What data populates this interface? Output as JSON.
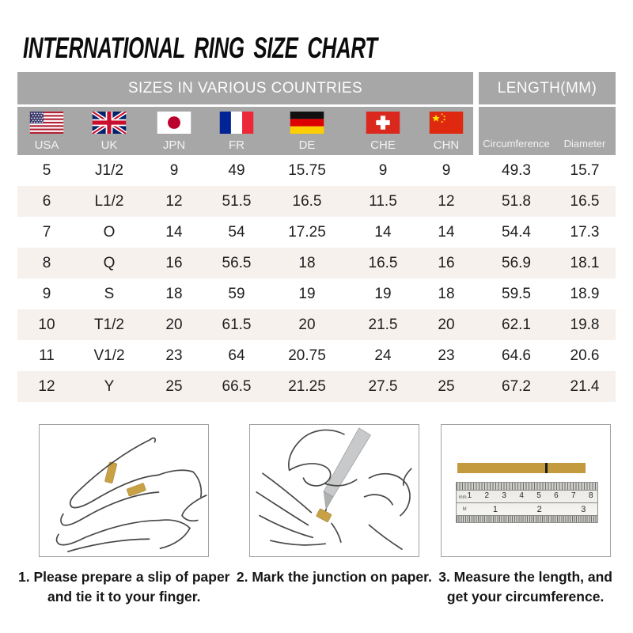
{
  "title": "INTERNATIONAL RING SIZE CHART",
  "table": {
    "section_headers": [
      "SIZES IN VARIOUS COUNTRIES",
      "LENGTH(MM)"
    ],
    "columns": [
      {
        "label": "USA",
        "flag": "usa-flag-icon"
      },
      {
        "label": "UK",
        "flag": "uk-flag-icon"
      },
      {
        "label": "JPN",
        "flag": "japan-flag-icon"
      },
      {
        "label": "FR",
        "flag": "france-flag-icon"
      },
      {
        "label": "DE",
        "flag": "germany-flag-icon"
      },
      {
        "label": "CHE",
        "flag": "switzerland-flag-icon"
      },
      {
        "label": "CHN",
        "flag": "china-flag-icon"
      }
    ],
    "length_columns": [
      "Circumference",
      "Diameter"
    ],
    "rows": [
      [
        "5",
        "J1/2",
        "9",
        "49",
        "15.75",
        "9",
        "9",
        "49.3",
        "15.7"
      ],
      [
        "6",
        "L1/2",
        "12",
        "51.5",
        "16.5",
        "11.5",
        "12",
        "51.8",
        "16.5"
      ],
      [
        "7",
        "O",
        "14",
        "54",
        "17.25",
        "14",
        "14",
        "54.4",
        "17.3"
      ],
      [
        "8",
        "Q",
        "16",
        "56.5",
        "18",
        "16.5",
        "16",
        "56.9",
        "18.1"
      ],
      [
        "9",
        "S",
        "18",
        "59",
        "19",
        "19",
        "18",
        "59.5",
        "18.9"
      ],
      [
        "10",
        "T1/2",
        "20",
        "61.5",
        "20",
        "21.5",
        "20",
        "62.1",
        "19.8"
      ],
      [
        "11",
        "V1/2",
        "23",
        "64",
        "20.75",
        "24",
        "23",
        "64.6",
        "20.6"
      ],
      [
        "12",
        "Y",
        "25",
        "66.5",
        "21.25",
        "27.5",
        "25",
        "67.2",
        "21.4"
      ]
    ]
  },
  "steps": [
    {
      "caption": [
        "1. Please prepare a slip of paper",
        "and tie it to your finger."
      ]
    },
    {
      "caption": [
        "2. Mark the junction on paper."
      ]
    },
    {
      "caption": [
        "3. Measure the length, and",
        "get your circumference."
      ]
    }
  ],
  "ruler": {
    "cm_numbers": [
      "1",
      "2",
      "3",
      "4",
      "5",
      "6",
      "7",
      "8"
    ],
    "inch_numbers": [
      "1",
      "2",
      "3"
    ],
    "cm_unit": "mm",
    "inch_unit": "M"
  },
  "colors": {
    "header_gray": "#a7a7a7",
    "alt_row_beige": "#f7f1ee",
    "paper_gold": "#c49a3f"
  }
}
